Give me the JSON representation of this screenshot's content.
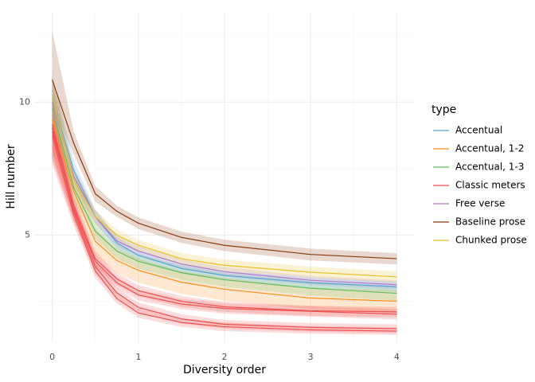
{
  "chart_data": {
    "type": "line",
    "x_label": "Diversity order",
    "y_label": "Hill number",
    "x": [
      0,
      0.25,
      0.5,
      0.75,
      1,
      1.5,
      2,
      3,
      4
    ],
    "xlim": [
      -0.2,
      4.2
    ],
    "xticks": [
      0,
      1,
      2,
      3,
      4
    ],
    "ylim": [
      2.86,
      16
    ],
    "yticks": [
      5,
      10
    ],
    "y_scale": "log",
    "grid": true,
    "legend_title": "type",
    "legend_position": "right",
    "series": [
      {
        "name": "Accentual",
        "color": "#5aa5d9",
        "lines": [
          {
            "values": [
              10.2,
              7.0,
              5.5,
              4.8,
              4.5,
              4.2,
              4.05,
              3.9,
              3.82
            ],
            "lower": [
              8.9,
              6.6,
              5.3,
              4.65,
              4.38,
              4.09,
              3.95,
              3.8,
              3.72
            ],
            "upper": [
              11.5,
              7.4,
              5.7,
              4.95,
              4.62,
              4.31,
              4.15,
              4.0,
              3.92
            ]
          }
        ]
      },
      {
        "name": "Accentual, 1-2",
        "color": "#ff8c1a",
        "lines": [
          {
            "values": [
              9.13,
              6.28,
              4.84,
              4.38,
              4.16,
              3.91,
              3.77,
              3.6,
              3.54
            ],
            "lower": [
              7.8,
              5.8,
              4.5,
              4.1,
              3.9,
              3.68,
              3.55,
              3.4,
              3.33
            ],
            "upper": [
              10.5,
              6.8,
              5.2,
              4.66,
              4.42,
              4.14,
              4.0,
              3.8,
              3.75
            ]
          }
        ]
      },
      {
        "name": "Accentual, 1-3",
        "color": "#5fbf5f",
        "lines": [
          {
            "values": [
              9.7,
              6.4,
              5.1,
              4.6,
              4.36,
              4.11,
              3.96,
              3.79,
              3.69
            ],
            "lower": [
              8.5,
              6.0,
              4.9,
              4.42,
              4.2,
              3.96,
              3.82,
              3.65,
              3.55
            ],
            "upper": [
              10.9,
              6.8,
              5.3,
              4.78,
              4.52,
              4.26,
              4.1,
              3.93,
              3.83
            ]
          }
        ]
      },
      {
        "name": "Classic meters",
        "color": "#ef4f4f",
        "lines": [
          {
            "values": [
              8.9,
              5.83,
              4.42,
              3.98,
              3.74,
              3.54,
              3.44,
              3.37,
              3.35
            ],
            "lower": [
              7.7,
              5.5,
              4.25,
              3.85,
              3.63,
              3.44,
              3.35,
              3.28,
              3.26
            ],
            "upper": [
              10.1,
              6.15,
              4.6,
              4.1,
              3.85,
              3.64,
              3.53,
              3.46,
              3.44
            ]
          },
          {
            "values": [
              8.58,
              5.73,
              4.36,
              3.9,
              3.66,
              3.49,
              3.41,
              3.36,
              3.31
            ],
            "lower": [
              7.4,
              5.4,
              4.2,
              3.78,
              3.56,
              3.4,
              3.32,
              3.27,
              3.22
            ],
            "upper": [
              9.8,
              6.05,
              4.52,
              4.02,
              3.76,
              3.58,
              3.5,
              3.45,
              3.4
            ]
          },
          {
            "values": [
              8.75,
              5.66,
              4.24,
              3.7,
              3.43,
              3.23,
              3.14,
              3.09,
              3.07
            ],
            "lower": [
              7.5,
              5.35,
              4.08,
              3.6,
              3.34,
              3.15,
              3.07,
              3.02,
              3.0
            ],
            "upper": [
              10.0,
              5.97,
              4.4,
              3.8,
              3.52,
              3.31,
              3.21,
              3.16,
              3.14
            ]
          },
          {
            "values": [
              8.4,
              5.55,
              4.15,
              3.59,
              3.33,
              3.17,
              3.1,
              3.05,
              3.03
            ],
            "lower": [
              7.2,
              5.25,
              4.0,
              3.5,
              3.25,
              3.1,
              3.03,
              2.99,
              2.97
            ],
            "upper": [
              9.6,
              5.85,
              4.3,
              3.68,
              3.41,
              3.24,
              3.17,
              3.11,
              3.09
            ]
          }
        ]
      },
      {
        "name": "Free verse",
        "color": "#b07cc6",
        "lines": [
          {
            "values": [
              10.0,
              6.8,
              5.5,
              4.85,
              4.6,
              4.3,
              4.13,
              3.95,
              3.86
            ],
            "lower": [
              8.8,
              6.5,
              5.3,
              4.72,
              4.48,
              4.19,
              4.03,
              3.86,
              3.77
            ],
            "upper": [
              11.2,
              7.1,
              5.7,
              4.98,
              4.72,
              4.41,
              4.23,
              4.04,
              3.95
            ]
          }
        ]
      },
      {
        "name": "Baseline prose",
        "color": "#8b3a0f",
        "lines": [
          {
            "values": [
              11.23,
              8.06,
              6.2,
              5.66,
              5.32,
              4.94,
              4.74,
              4.52,
              4.42
            ],
            "lower": [
              9.9,
              7.6,
              5.95,
              5.5,
              5.16,
              4.8,
              4.6,
              4.38,
              4.29
            ],
            "upper": [
              14.5,
              8.55,
              6.45,
              5.83,
              5.48,
              5.09,
              4.88,
              4.66,
              4.55
            ]
          }
        ]
      },
      {
        "name": "Chunked prose",
        "color": "#e8c02a",
        "lines": [
          {
            "values": [
              10.3,
              6.68,
              5.5,
              5.0,
              4.74,
              4.42,
              4.27,
              4.12,
              4.02
            ],
            "lower": [
              9.0,
              6.3,
              5.3,
              4.85,
              4.6,
              4.3,
              4.15,
              4.0,
              3.9
            ],
            "upper": [
              11.6,
              7.05,
              5.7,
              5.15,
              4.88,
              4.55,
              4.4,
              4.24,
              4.14
            ]
          }
        ]
      }
    ]
  }
}
